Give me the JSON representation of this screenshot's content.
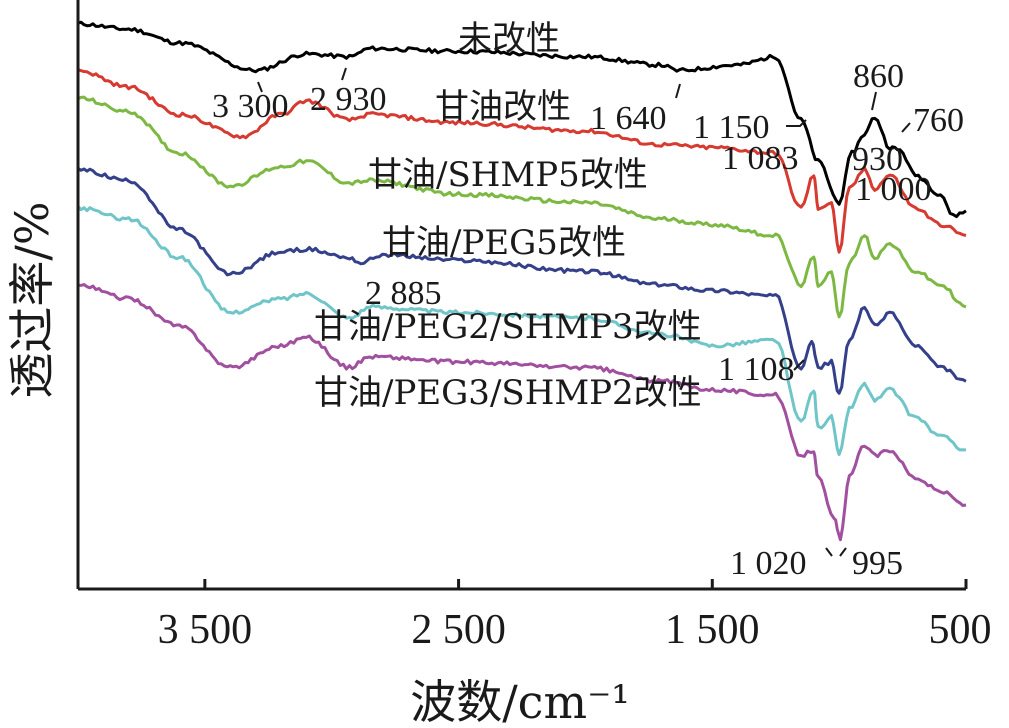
{
  "chart_data": {
    "type": "line",
    "xlabel": "波数/cm⁻¹",
    "ylabel": "透过率/%",
    "xlim": [
      4000,
      500
    ],
    "x_reversed": true,
    "x_ticks": [
      3500,
      2500,
      1500,
      500
    ],
    "x_tick_labels": [
      "3 500",
      "2 500",
      "1 500",
      "500"
    ],
    "y_ticks": [],
    "grid": false,
    "legend": "none",
    "series": [
      {
        "name": "未改性",
        "color": "#000000",
        "points": [
          [
            4000,
            95
          ],
          [
            3800,
            93
          ],
          [
            3600,
            88
          ],
          [
            3300,
            78
          ],
          [
            3100,
            84
          ],
          [
            2930,
            83
          ],
          [
            2850,
            86
          ],
          [
            2500,
            85
          ],
          [
            2000,
            83
          ],
          [
            1700,
            80
          ],
          [
            1640,
            78
          ],
          [
            1400,
            80
          ],
          [
            1250,
            83
          ],
          [
            1150,
            60
          ],
          [
            1083,
            45
          ],
          [
            1000,
            30
          ],
          [
            950,
            48
          ],
          [
            900,
            55
          ],
          [
            860,
            61
          ],
          [
            800,
            50
          ],
          [
            760,
            49
          ],
          [
            700,
            40
          ],
          [
            600,
            33
          ],
          [
            550,
            25
          ],
          [
            500,
            27
          ]
        ]
      },
      {
        "name": "甘油改性",
        "color": "#d63a30",
        "points": [
          [
            4000,
            78
          ],
          [
            3800,
            72
          ],
          [
            3600,
            62
          ],
          [
            3350,
            54
          ],
          [
            3200,
            62
          ],
          [
            3100,
            67
          ],
          [
            2930,
            60
          ],
          [
            2850,
            62
          ],
          [
            2500,
            59
          ],
          [
            2000,
            56
          ],
          [
            1700,
            51
          ],
          [
            1500,
            50
          ],
          [
            1250,
            48
          ],
          [
            1150,
            28
          ],
          [
            1100,
            40
          ],
          [
            1083,
            28
          ],
          [
            1030,
            30
          ],
          [
            1000,
            12
          ],
          [
            960,
            35
          ],
          [
            900,
            42
          ],
          [
            860,
            35
          ],
          [
            800,
            40
          ],
          [
            700,
            28
          ],
          [
            600,
            22
          ],
          [
            500,
            18
          ]
        ]
      },
      {
        "name": "甘油/SHMP5改性",
        "color": "#7db843",
        "points": [
          [
            4000,
            68
          ],
          [
            3800,
            63
          ],
          [
            3600,
            48
          ],
          [
            3400,
            36
          ],
          [
            3200,
            43
          ],
          [
            3100,
            45
          ],
          [
            2930,
            37
          ],
          [
            2850,
            38
          ],
          [
            2500,
            33
          ],
          [
            2000,
            30
          ],
          [
            1700,
            24
          ],
          [
            1500,
            22
          ],
          [
            1250,
            18
          ],
          [
            1150,
            0
          ],
          [
            1100,
            10
          ],
          [
            1083,
            0
          ],
          [
            1030,
            5
          ],
          [
            1000,
            -12
          ],
          [
            960,
            8
          ],
          [
            900,
            18
          ],
          [
            860,
            10
          ],
          [
            800,
            15
          ],
          [
            700,
            5
          ],
          [
            600,
            0
          ],
          [
            500,
            -8
          ]
        ]
      },
      {
        "name": "甘油/PEG5改性",
        "color": "#35408a",
        "points": [
          [
            4000,
            42
          ],
          [
            3800,
            38
          ],
          [
            3600,
            20
          ],
          [
            3400,
            4
          ],
          [
            3200,
            12
          ],
          [
            3100,
            13
          ],
          [
            2930,
            10
          ],
          [
            2885,
            8
          ],
          [
            2800,
            11
          ],
          [
            2500,
            9
          ],
          [
            2000,
            5
          ],
          [
            1700,
            0
          ],
          [
            1500,
            -2
          ],
          [
            1250,
            -4
          ],
          [
            1150,
            -30
          ],
          [
            1108,
            -20
          ],
          [
            1083,
            -30
          ],
          [
            1030,
            -28
          ],
          [
            1000,
            -40
          ],
          [
            960,
            -20
          ],
          [
            900,
            -8
          ],
          [
            860,
            -15
          ],
          [
            800,
            -10
          ],
          [
            700,
            -22
          ],
          [
            600,
            -30
          ],
          [
            500,
            -35
          ]
        ]
      },
      {
        "name": "甘油/PEG2/SHMP3改性",
        "color": "#6fc5c8",
        "points": [
          [
            4000,
            28
          ],
          [
            3800,
            24
          ],
          [
            3600,
            10
          ],
          [
            3400,
            -10
          ],
          [
            3200,
            -5
          ],
          [
            3100,
            -3
          ],
          [
            2930,
            -12
          ],
          [
            2850,
            -8
          ],
          [
            2500,
            -10
          ],
          [
            2000,
            -12
          ],
          [
            1700,
            -18
          ],
          [
            1500,
            -22
          ],
          [
            1250,
            -20
          ],
          [
            1150,
            -50
          ],
          [
            1100,
            -38
          ],
          [
            1083,
            -52
          ],
          [
            1030,
            -48
          ],
          [
            1000,
            -62
          ],
          [
            960,
            -45
          ],
          [
            900,
            -36
          ],
          [
            860,
            -42
          ],
          [
            800,
            -38
          ],
          [
            700,
            -48
          ],
          [
            600,
            -55
          ],
          [
            500,
            -60
          ]
        ]
      },
      {
        "name": "甘油/PEG3/SHMP2改性",
        "color": "#a0509e",
        "points": [
          [
            4000,
            0
          ],
          [
            3800,
            -5
          ],
          [
            3600,
            -15
          ],
          [
            3400,
            -30
          ],
          [
            3200,
            -22
          ],
          [
            3100,
            -19
          ],
          [
            2930,
            -30
          ],
          [
            2850,
            -26
          ],
          [
            2500,
            -28
          ],
          [
            2000,
            -30
          ],
          [
            1700,
            -35
          ],
          [
            1500,
            -38
          ],
          [
            1250,
            -40
          ],
          [
            1150,
            -62
          ],
          [
            1100,
            -60
          ],
          [
            1083,
            -70
          ],
          [
            1020,
            -85
          ],
          [
            995,
            -92
          ],
          [
            960,
            -70
          ],
          [
            900,
            -58
          ],
          [
            860,
            -62
          ],
          [
            800,
            -60
          ],
          [
            700,
            -70
          ],
          [
            600,
            -75
          ],
          [
            500,
            -80
          ]
        ]
      }
    ],
    "series_labels": [
      "未改性",
      "甘油改性",
      "甘油/SHMP5改性",
      "甘油/PEG5改性",
      "甘油/PEG2/SHMP3改性",
      "甘油/PEG3/SHMP2改性"
    ],
    "annotations": [
      "3 300",
      "2 930",
      "1 640",
      "1 150",
      "860",
      "760",
      "1 083",
      "930",
      "1 000",
      "2 885",
      "1 108",
      "1 020",
      "995"
    ]
  }
}
